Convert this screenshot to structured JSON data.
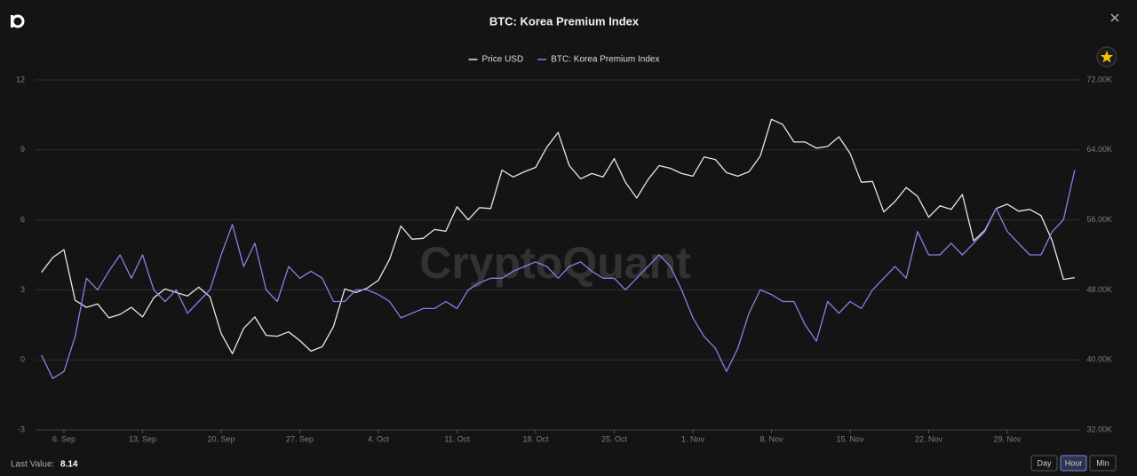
{
  "chart_data": {
    "type": "line",
    "title": "BTC: Korea Premium Index",
    "watermark": "CryptoQuant",
    "last_value_label": "Last Value:",
    "last_value": 8.14,
    "buttons": [
      "Day",
      "Hour",
      "Min"
    ],
    "active_button": "Hour",
    "grid": true,
    "legend": "top",
    "categories": [
      null,
      null,
      "6. Sep",
      null,
      null,
      null,
      null,
      null,
      null,
      "13. Sep",
      null,
      null,
      null,
      null,
      null,
      null,
      "20. Sep",
      null,
      null,
      null,
      null,
      null,
      null,
      "27. Sep",
      null,
      null,
      null,
      null,
      null,
      null,
      "4. Oct",
      null,
      null,
      null,
      null,
      null,
      null,
      "11. Oct",
      null,
      null,
      null,
      null,
      null,
      null,
      "18. Oct",
      null,
      null,
      null,
      null,
      null,
      null,
      "25. Oct",
      null,
      null,
      null,
      null,
      null,
      null,
      "1. Nov",
      null,
      null,
      null,
      null,
      null,
      null,
      "8. Nov",
      null,
      null,
      null,
      null,
      null,
      null,
      "15. Nov",
      null,
      null,
      null,
      null,
      null,
      null,
      "22. Nov",
      null,
      null,
      null,
      null,
      null,
      null,
      "29. Nov",
      null,
      null,
      null,
      null,
      null,
      null
    ],
    "ylim": [
      -3,
      12
    ],
    "yticks": [
      -3,
      0,
      3,
      6,
      9,
      12
    ],
    "y2lim": [
      32000,
      72000
    ],
    "y2ticks": [
      {
        "value": 32000,
        "label": "32.00K"
      },
      {
        "value": 40000,
        "label": "40.00K"
      },
      {
        "value": 48000,
        "label": "48.00K"
      },
      {
        "value": 56000,
        "label": "56.00K"
      },
      {
        "value": 64000,
        "label": "64.00K"
      },
      {
        "value": 72000,
        "label": "72.00K"
      }
    ],
    "series": [
      {
        "name": "Price USD",
        "color": "#e6e6e6",
        "axis": "y2",
        "values": [
          50000,
          51700,
          52600,
          46800,
          46000,
          46400,
          44800,
          45200,
          46000,
          44900,
          47100,
          48100,
          47700,
          47300,
          48300,
          47200,
          43000,
          40700,
          43600,
          44900,
          42800,
          42700,
          43200,
          42200,
          41000,
          41500,
          43800,
          48100,
          47700,
          48200,
          49100,
          51500,
          55300,
          53800,
          53900,
          54900,
          54700,
          57500,
          56000,
          57400,
          57300,
          61700,
          60900,
          61500,
          62000,
          64300,
          66000,
          62200,
          60700,
          61300,
          60900,
          63000,
          60300,
          58500,
          60600,
          62200,
          61900,
          61300,
          61000,
          63200,
          62900,
          61400,
          61000,
          61500,
          63300,
          67500,
          66900,
          64900,
          64900,
          64200,
          64400,
          65500,
          63600,
          60300,
          60400,
          56900,
          58100,
          59700,
          58700,
          56300,
          57600,
          57200,
          58900,
          53600,
          54800,
          57300,
          57800,
          57000,
          57200,
          56500,
          53600,
          49200,
          49400
        ]
      },
      {
        "name": "BTC: Korea Premium Index",
        "color": "#8a7ee6",
        "values": [
          0.2,
          -0.8,
          -0.5,
          1.0,
          3.5,
          3.0,
          3.8,
          4.5,
          3.5,
          4.5,
          3.0,
          2.5,
          3.0,
          2.0,
          2.5,
          3.0,
          4.5,
          5.8,
          4.0,
          5.0,
          3.0,
          2.5,
          4.0,
          3.5,
          3.8,
          3.5,
          2.5,
          2.5,
          3.0,
          3.0,
          2.8,
          2.5,
          1.8,
          2.0,
          2.2,
          2.2,
          2.5,
          2.2,
          3.0,
          3.3,
          3.5,
          3.5,
          3.8,
          4.0,
          4.2,
          4.0,
          3.5,
          4.0,
          4.2,
          3.8,
          3.5,
          3.5,
          3.0,
          3.5,
          4.0,
          4.5,
          4.0,
          3.0,
          1.8,
          1.0,
          0.5,
          -0.5,
          0.5,
          2.0,
          3.0,
          2.8,
          2.5,
          2.5,
          1.5,
          0.8,
          2.5,
          2.0,
          2.5,
          2.2,
          3.0,
          3.5,
          4.0,
          3.5,
          5.5,
          4.5,
          4.5,
          5.0,
          4.5,
          5.0,
          5.5,
          6.5,
          5.5,
          5.0,
          4.5,
          4.5,
          5.5,
          6.0,
          8.14
        ]
      }
    ]
  }
}
